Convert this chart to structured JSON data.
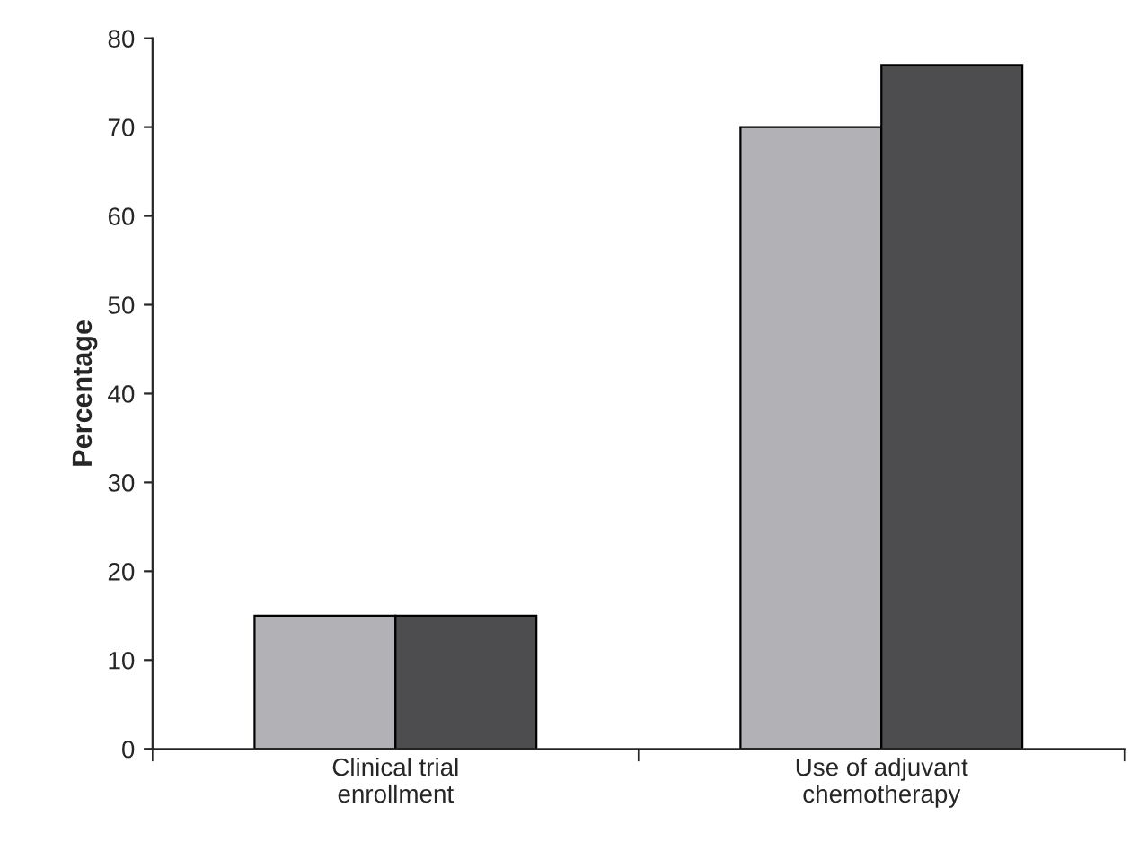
{
  "chart_data": {
    "type": "bar",
    "ylabel": "Percentage",
    "categories": [
      "Clinical trial\nenrollment",
      "Use of adjuvant\nchemotherapy"
    ],
    "series": [
      {
        "color": "#b2b2b6",
        "values": [
          15,
          70
        ]
      },
      {
        "color": "#4d4d4f",
        "values": [
          15,
          77
        ]
      }
    ],
    "ylim": [
      0,
      80
    ],
    "yticks": [
      0,
      10,
      20,
      30,
      40,
      50,
      60,
      70,
      80
    ],
    "grid": false,
    "legend": false
  }
}
